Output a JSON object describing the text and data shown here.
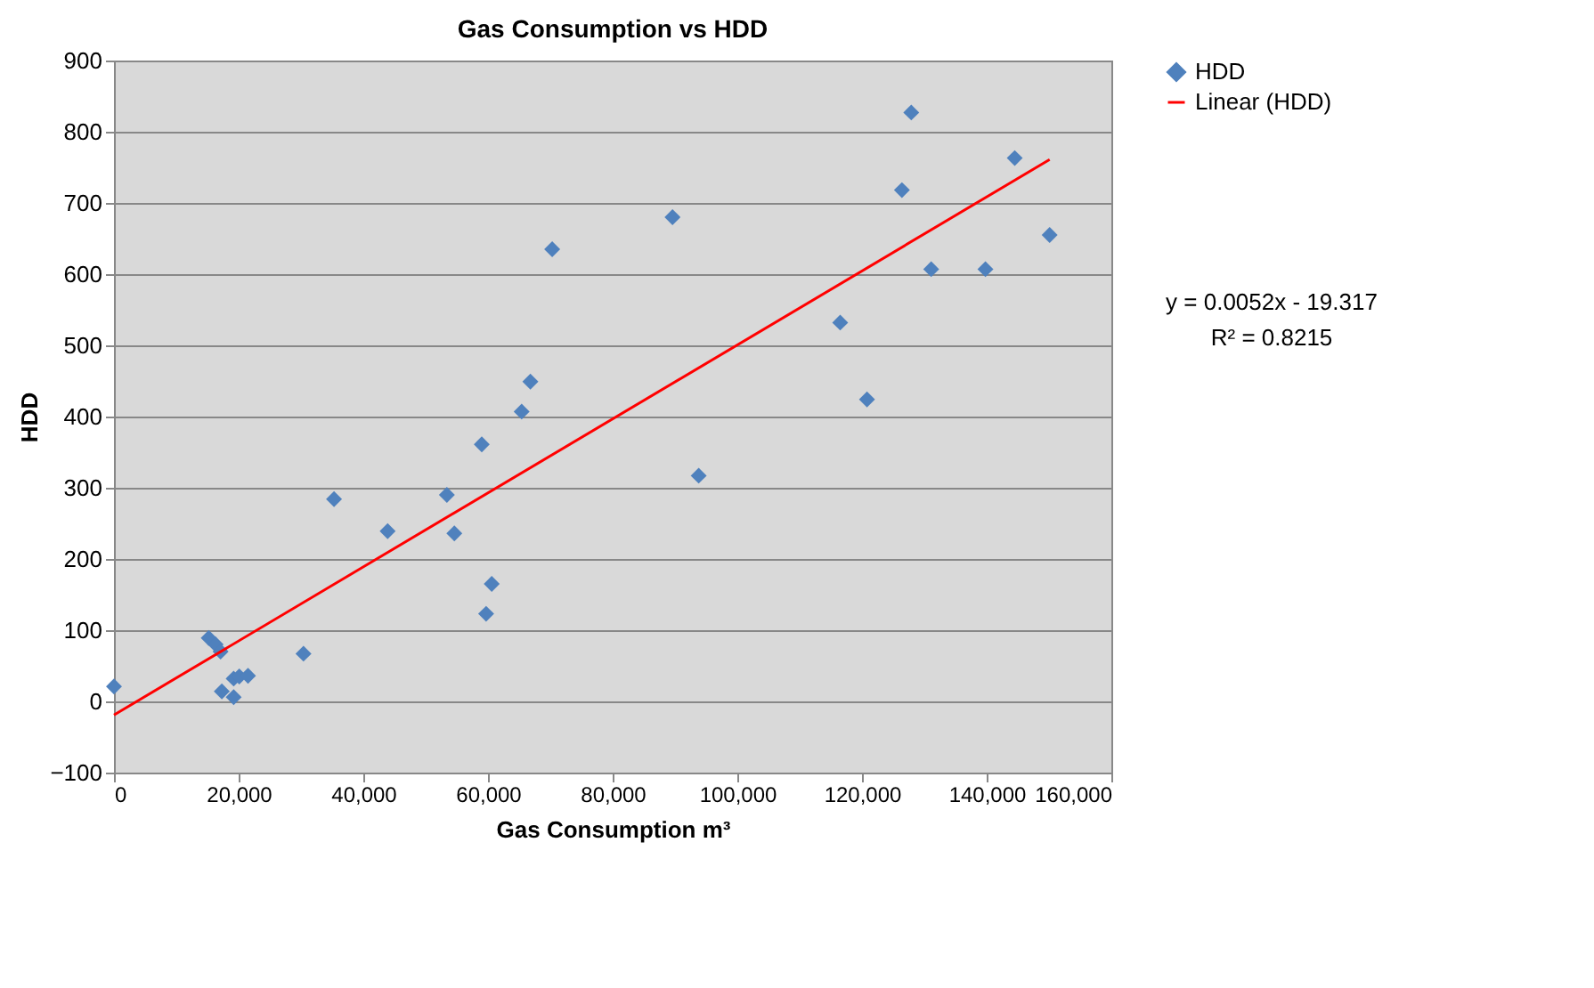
{
  "chart_data": {
    "type": "scatter",
    "title": "Gas Consumption  vs HDD",
    "xlabel": "Gas Consumption m³",
    "ylabel": "HDD",
    "xlim": [
      0,
      160000
    ],
    "xticks": [
      {
        "value": 0,
        "label": "0"
      },
      {
        "value": 20000,
        "label": "20,000"
      },
      {
        "value": 40000,
        "label": "40,000"
      },
      {
        "value": 60000,
        "label": "60,000"
      },
      {
        "value": 80000,
        "label": "80,000"
      },
      {
        "value": 100000,
        "label": "100,000"
      },
      {
        "value": 120000,
        "label": "120,000"
      },
      {
        "value": 140000,
        "label": "140,000"
      },
      {
        "value": 160000,
        "label": "160,000"
      }
    ],
    "ylim": [
      -100,
      900
    ],
    "yticks": [
      -100,
      0,
      100,
      200,
      300,
      400,
      500,
      600,
      700,
      800,
      900
    ],
    "grid": "y",
    "legend": "right",
    "annotations": [
      "y = 0.0052x - 19.317",
      "R² = 0.8215"
    ],
    "series": [
      {
        "name": "HDD",
        "marker": "diamond",
        "color": "#4f81bd",
        "x": [
          0,
          15200,
          16300,
          17100,
          30400,
          17300,
          19200,
          19200,
          20100,
          21500,
          35300,
          43900,
          53400,
          54600,
          59000,
          59700,
          60600,
          65400,
          66800,
          70300,
          89600,
          93800,
          116500,
          120800,
          126400,
          127900,
          131100,
          139800,
          144500,
          150100
        ],
        "values": [
          21,
          89,
          80,
          70,
          67,
          14,
          6,
          32,
          35,
          36,
          284,
          239,
          290,
          236,
          361,
          123,
          165,
          407,
          449,
          635,
          680,
          317,
          532,
          424,
          718,
          827,
          607,
          607,
          763,
          655
        ]
      },
      {
        "name": "Linear (HDD)",
        "type": "line",
        "color": "#ff0000",
        "x": [
          0,
          150100
        ],
        "values": [
          -19,
          761
        ]
      }
    ]
  }
}
